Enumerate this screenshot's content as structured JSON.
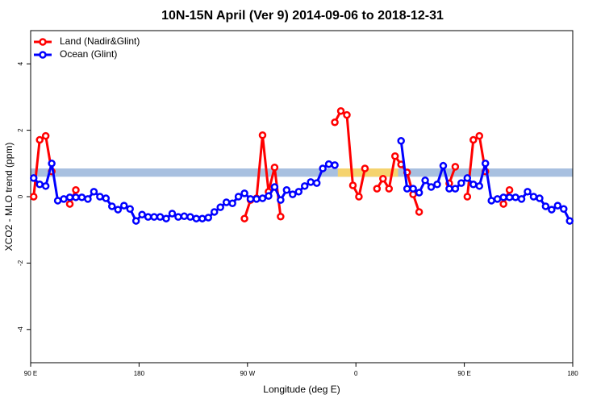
{
  "chart_data": {
    "type": "line",
    "title": "10N-15N April (Ver 9)   2014-09-06 to 2018-12-31",
    "x_label": "Longitude (deg E)",
    "y_label": "XCO2 - MLO trend (ppm)",
    "x": [
      92.5,
      97.5,
      102.5,
      107.5,
      112.5,
      117.5,
      122.5,
      127.5,
      132.5,
      137.5,
      142.5,
      147.5,
      152.5,
      157.5,
      162.5,
      167.5,
      172.5,
      177.5,
      182.5,
      187.5,
      192.5,
      197.5,
      202.5,
      207.5,
      212.5,
      217.5,
      222.5,
      227.5,
      232.5,
      237.5,
      242.5,
      247.5,
      252.5,
      257.5,
      262.5,
      267.5,
      272.5,
      277.5,
      282.5,
      287.5,
      292.5,
      297.5,
      302.5,
      307.5,
      312.5,
      317.5,
      322.5,
      327.5,
      332.5,
      337.5,
      342.5,
      347.5,
      352.5,
      357.5,
      362.5,
      367.5,
      372.5,
      377.5,
      382.5,
      387.5,
      392.5,
      397.5,
      402.5,
      407.5,
      412.5,
      417.5,
      422.5,
      427.5,
      432.5,
      437.5,
      442.5,
      447.5,
      452.5,
      457.5,
      462.5,
      467.5,
      472.5,
      477.5,
      482.5,
      487.5,
      492.5,
      497.5,
      502.5,
      507.5,
      512.5,
      517.5,
      522.5,
      527.5,
      532.5,
      537.5
    ],
    "series": [
      {
        "name": "Land (Nadir&Glint)",
        "color": "#ff0000",
        "values": [
          0,
          1.71,
          1.83,
          0.76,
          null,
          null,
          -0.22,
          0.2,
          null,
          null,
          null,
          null,
          null,
          null,
          null,
          null,
          null,
          null,
          null,
          null,
          null,
          null,
          null,
          null,
          null,
          null,
          null,
          null,
          null,
          null,
          null,
          null,
          null,
          null,
          null,
          -0.66,
          -0.1,
          -0.05,
          1.85,
          0.15,
          0.88,
          -0.6,
          null,
          null,
          null,
          null,
          null,
          null,
          null,
          null,
          2.24,
          2.58,
          2.46,
          0.34,
          0,
          0.85,
          null,
          0.24,
          0.54,
          0.24,
          1.22,
          0.97,
          0.73,
          0.07,
          -0.46,
          null,
          null,
          null,
          null,
          0.4,
          0.9,
          null,
          0,
          1.71,
          1.83,
          0.76,
          null,
          null,
          -0.22,
          0.2,
          null,
          null,
          null,
          null,
          null,
          null,
          null,
          null,
          null,
          null
        ]
      },
      {
        "name": "Ocean (Glint)",
        "color": "#0000ff",
        "values": [
          0.56,
          0.37,
          0.32,
          1.0,
          -0.12,
          -0.07,
          -0.02,
          -0.02,
          -0.02,
          -0.07,
          0.15,
          0,
          -0.05,
          -0.29,
          -0.39,
          -0.27,
          -0.37,
          -0.73,
          -0.54,
          -0.61,
          -0.61,
          -0.61,
          -0.66,
          -0.51,
          -0.61,
          -0.59,
          -0.61,
          -0.66,
          -0.66,
          -0.63,
          -0.46,
          -0.32,
          -0.17,
          -0.2,
          0,
          0.1,
          -0.07,
          -0.07,
          -0.05,
          0.02,
          0.29,
          -0.1,
          0.2,
          0.07,
          0.15,
          0.32,
          0.44,
          0.41,
          0.85,
          0.98,
          0.95,
          null,
          null,
          null,
          null,
          null,
          null,
          null,
          null,
          null,
          null,
          1.68,
          0.24,
          0.24,
          0.12,
          0.49,
          0.29,
          0.37,
          0.93,
          0.24,
          0.24,
          0.41,
          0.56,
          0.37,
          0.32,
          1.0,
          -0.12,
          -0.07,
          -0.02,
          -0.02,
          -0.02,
          -0.07,
          0.15,
          0,
          -0.05,
          -0.29,
          -0.39,
          -0.27,
          -0.37,
          -0.73
        ]
      }
    ],
    "band": {
      "ylim": [
        0.6,
        0.85
      ],
      "color": "#a8c0e0",
      "highlight_xlim": [
        345,
        395
      ],
      "highlight_color": "#f5d36e"
    },
    "xlim": [
      90,
      540
    ],
    "xticks": [
      {
        "value": 90,
        "label": "90 E"
      },
      180,
      {
        "value": 270,
        "label": "90 W"
      },
      {
        "value": 360,
        "label": "0"
      },
      {
        "value": 450,
        "label": "90 E"
      },
      {
        "value": 540,
        "label": "180"
      }
    ],
    "ylim": [
      -5,
      5
    ],
    "yticks": [
      -4,
      -2,
      0,
      2,
      4
    ],
    "legend": "top-left"
  }
}
